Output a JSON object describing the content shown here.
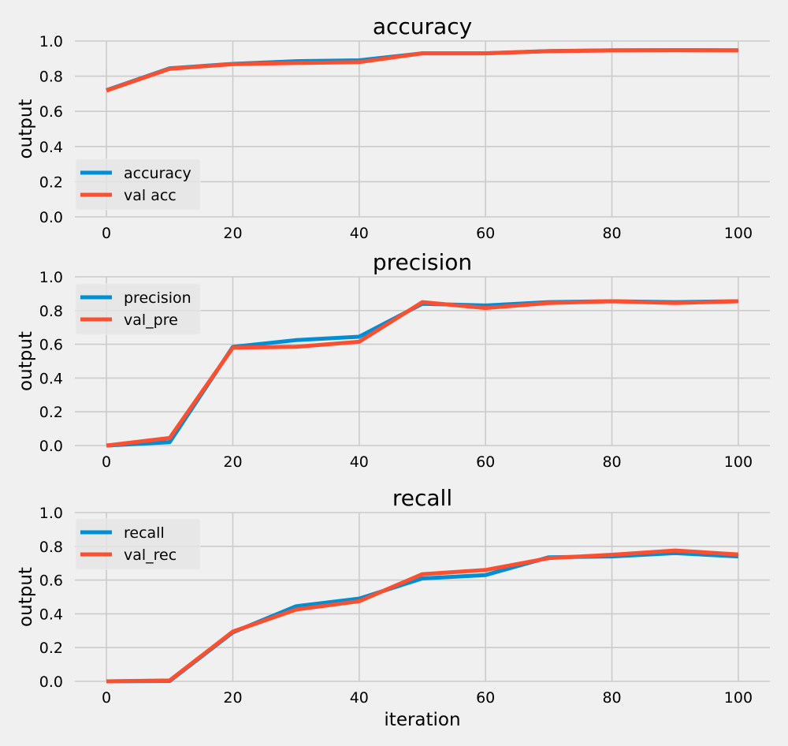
{
  "chart_data": [
    {
      "type": "line",
      "title": "accuracy",
      "ylabel": "output",
      "xlabel": "",
      "x": [
        0,
        10,
        20,
        30,
        40,
        50,
        60,
        70,
        80,
        90,
        100
      ],
      "xticks": [
        0,
        20,
        40,
        60,
        80,
        100
      ],
      "yticks": [
        "0.0",
        "0.2",
        "0.4",
        "0.6",
        "0.8",
        "1.0"
      ],
      "ylim": [
        0,
        1.0
      ],
      "xlim": [
        -5,
        105
      ],
      "grid": true,
      "legend": "lower-left",
      "series": [
        {
          "name": "accuracy",
          "color": "#008fd5",
          "values": [
            0.72,
            0.845,
            0.87,
            0.885,
            0.89,
            0.93,
            0.93,
            0.943,
            0.947,
            0.948,
            0.947
          ]
        },
        {
          "name": "val acc",
          "color": "#fc4f30",
          "values": [
            0.718,
            0.842,
            0.868,
            0.875,
            0.88,
            0.93,
            0.93,
            0.942,
            0.946,
            0.947,
            0.946
          ]
        }
      ]
    },
    {
      "type": "line",
      "title": "precision",
      "ylabel": "output",
      "xlabel": "",
      "x": [
        0,
        10,
        20,
        30,
        40,
        50,
        60,
        70,
        80,
        90,
        100
      ],
      "xticks": [
        0,
        20,
        40,
        60,
        80,
        100
      ],
      "yticks": [
        "0.0",
        "0.2",
        "0.4",
        "0.6",
        "0.8",
        "1.0"
      ],
      "ylim": [
        0,
        1.0
      ],
      "xlim": [
        -5,
        105
      ],
      "grid": true,
      "legend": "upper-left",
      "series": [
        {
          "name": "precision",
          "color": "#008fd5",
          "values": [
            0.0,
            0.02,
            0.585,
            0.625,
            0.645,
            0.84,
            0.83,
            0.85,
            0.855,
            0.85,
            0.855
          ]
        },
        {
          "name": "val_pre",
          "color": "#fc4f30",
          "values": [
            0.0,
            0.045,
            0.58,
            0.585,
            0.615,
            0.85,
            0.815,
            0.845,
            0.855,
            0.845,
            0.855
          ]
        }
      ]
    },
    {
      "type": "line",
      "title": "recall",
      "ylabel": "output",
      "xlabel": "iteration",
      "x": [
        0,
        10,
        20,
        30,
        40,
        50,
        60,
        70,
        80,
        90,
        100
      ],
      "xticks": [
        0,
        20,
        40,
        60,
        80,
        100
      ],
      "yticks": [
        "0.0",
        "0.2",
        "0.4",
        "0.6",
        "0.8",
        "1.0"
      ],
      "ylim": [
        0,
        1.0
      ],
      "xlim": [
        -5,
        105
      ],
      "grid": true,
      "legend": "upper-left",
      "series": [
        {
          "name": "recall",
          "color": "#008fd5",
          "values": [
            0.0,
            0.002,
            0.29,
            0.445,
            0.49,
            0.61,
            0.63,
            0.735,
            0.74,
            0.76,
            0.74
          ]
        },
        {
          "name": "val_rec",
          "color": "#fc4f30",
          "values": [
            0.0,
            0.005,
            0.295,
            0.425,
            0.475,
            0.635,
            0.66,
            0.73,
            0.75,
            0.775,
            0.752
          ]
        }
      ]
    }
  ]
}
